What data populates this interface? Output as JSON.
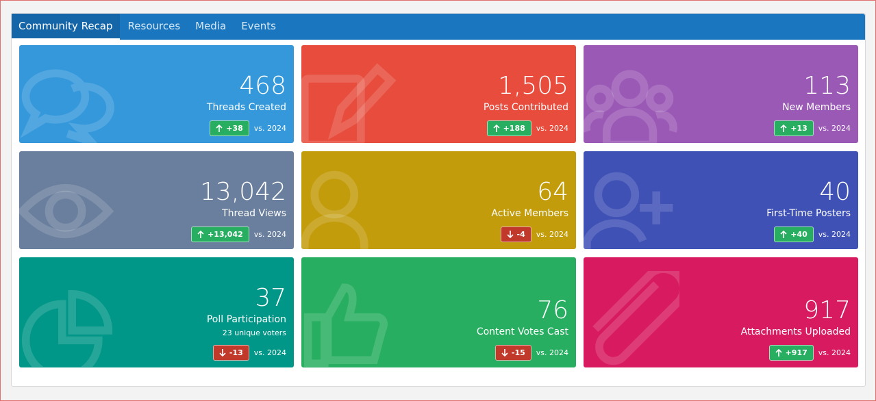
{
  "tabs": [
    "Community Recap",
    "Resources",
    "Media",
    "Events"
  ],
  "cards": [
    {
      "value": "468",
      "label": "Threads Created",
      "delta": "+38",
      "compare": "vs. 2024",
      "color": "#3498db"
    },
    {
      "value": "1,505",
      "label": "Posts Contributed",
      "delta": "+188",
      "compare": "vs. 2024",
      "color": "#e74c3c"
    },
    {
      "value": "113",
      "label": "New Members",
      "delta": "+13",
      "compare": "vs. 2024",
      "color": "#9b59b6"
    },
    {
      "value": "13,042",
      "label": "Thread Views",
      "delta": "+13,042",
      "compare": "vs. 2024",
      "color": "#6a7f9d"
    },
    {
      "value": "64",
      "label": "Active Members",
      "delta": "-4",
      "compare": "vs. 2024",
      "color": "#c29c0b"
    },
    {
      "value": "40",
      "label": "First-Time Posters",
      "delta": "+40",
      "compare": "vs. 2024",
      "color": "#3f51b5"
    },
    {
      "value": "37",
      "label": "Poll Participation",
      "sublabel": "23 unique voters",
      "delta": "-13",
      "compare": "vs. 2024",
      "color": "#009688"
    },
    {
      "value": "76",
      "label": "Content Votes Cast",
      "delta": "-15",
      "compare": "vs. 2024",
      "color": "#27ae60"
    },
    {
      "value": "917",
      "label": "Attachments Uploaded",
      "delta": "+917",
      "compare": "vs. 2024",
      "color": "#d81b60"
    }
  ]
}
